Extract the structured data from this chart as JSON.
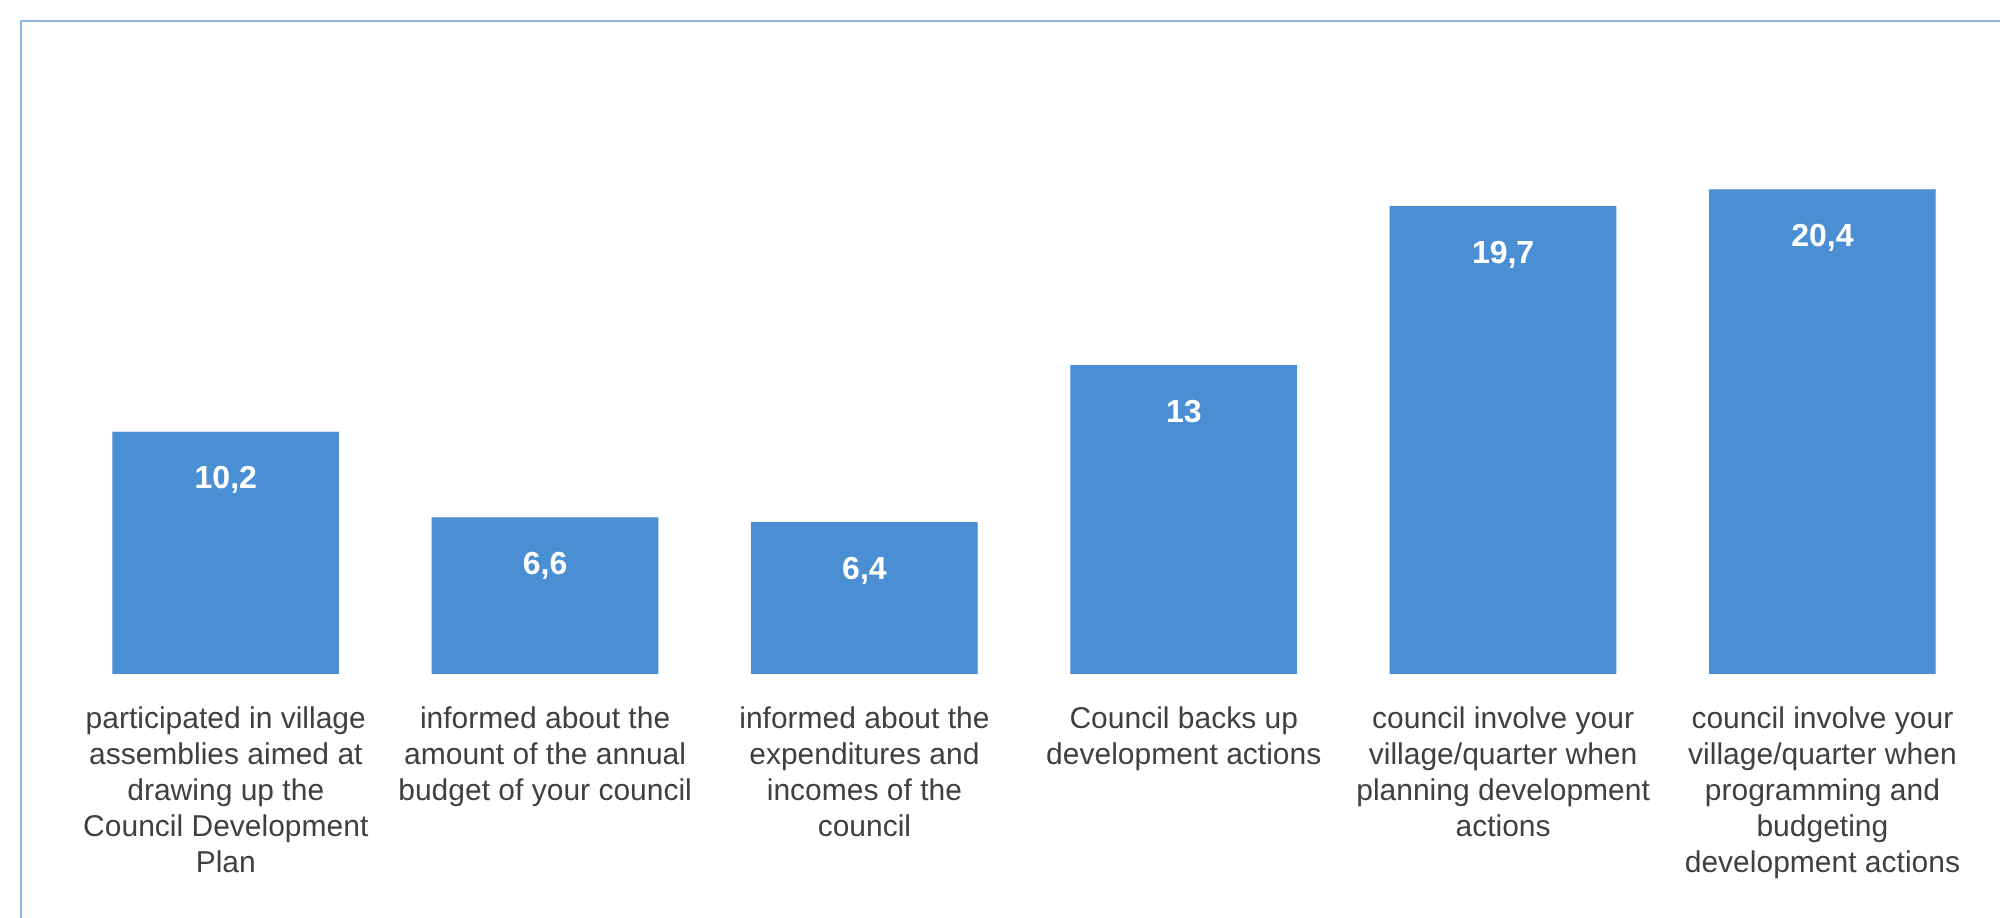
{
  "chart_data": {
    "type": "bar",
    "categories": [
      "participated in village assemblies aimed at drawing up the Council Development Plan",
      "informed about the amount of the annual budget of your council",
      "informed about the expenditures and incomes of the council",
      "Council backs up development actions",
      "council involve your village/quarter when planning development actions",
      "council involve your village/quarter when programming and budgeting development actions"
    ],
    "values": [
      10.2,
      6.6,
      6.4,
      13,
      19.7,
      20.4
    ],
    "value_labels": [
      "10,2",
      "6,6",
      "6,4",
      "13",
      "19,7",
      "20,4"
    ],
    "color": "#4a8fd4",
    "grid": false,
    "legend": false
  }
}
